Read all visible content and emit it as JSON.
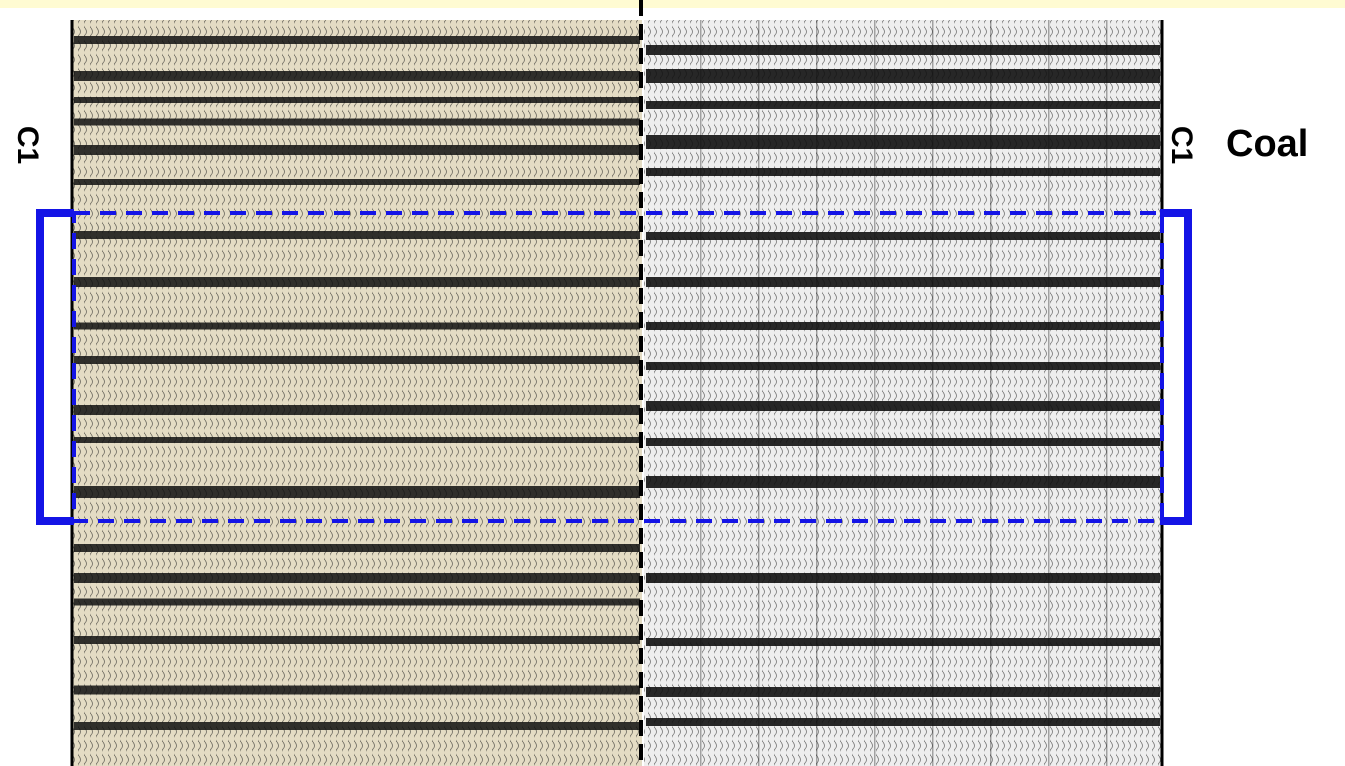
{
  "labels": {
    "left_marker": "C1",
    "right_marker": "C1",
    "right_label": "Coal"
  }
}
